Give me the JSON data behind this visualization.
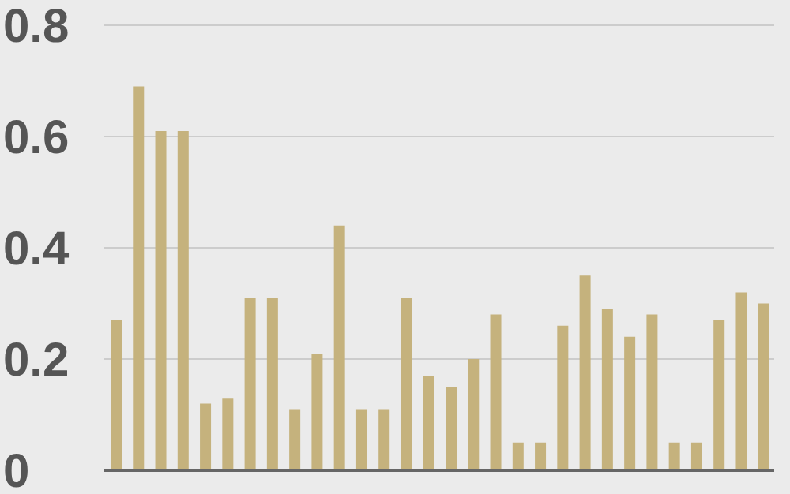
{
  "chart_data": {
    "type": "bar",
    "categories": [
      null,
      null,
      null,
      null,
      null,
      null,
      null,
      null,
      null,
      null,
      null,
      null,
      null,
      null,
      null,
      null,
      null,
      null,
      null,
      null,
      null,
      null,
      null,
      null,
      null,
      null,
      null,
      null,
      null,
      null
    ],
    "values": [
      0.27,
      0.69,
      0.61,
      0.61,
      0.12,
      0.13,
      0.31,
      0.31,
      0.11,
      0.21,
      0.44,
      0.11,
      0.11,
      0.31,
      0.17,
      0.15,
      0.2,
      0.28,
      0.05,
      0.05,
      0.26,
      0.35,
      0.29,
      0.24,
      0.28,
      0.05,
      0.05,
      0.27,
      0.32,
      0.3
    ],
    "color": "#c5b27d",
    "ylim": [
      0,
      0.8
    ],
    "yticks": [
      {
        "value": 0,
        "label": "0"
      },
      0.2,
      0.4,
      0.6,
      0.8
    ],
    "grid": "y"
  }
}
